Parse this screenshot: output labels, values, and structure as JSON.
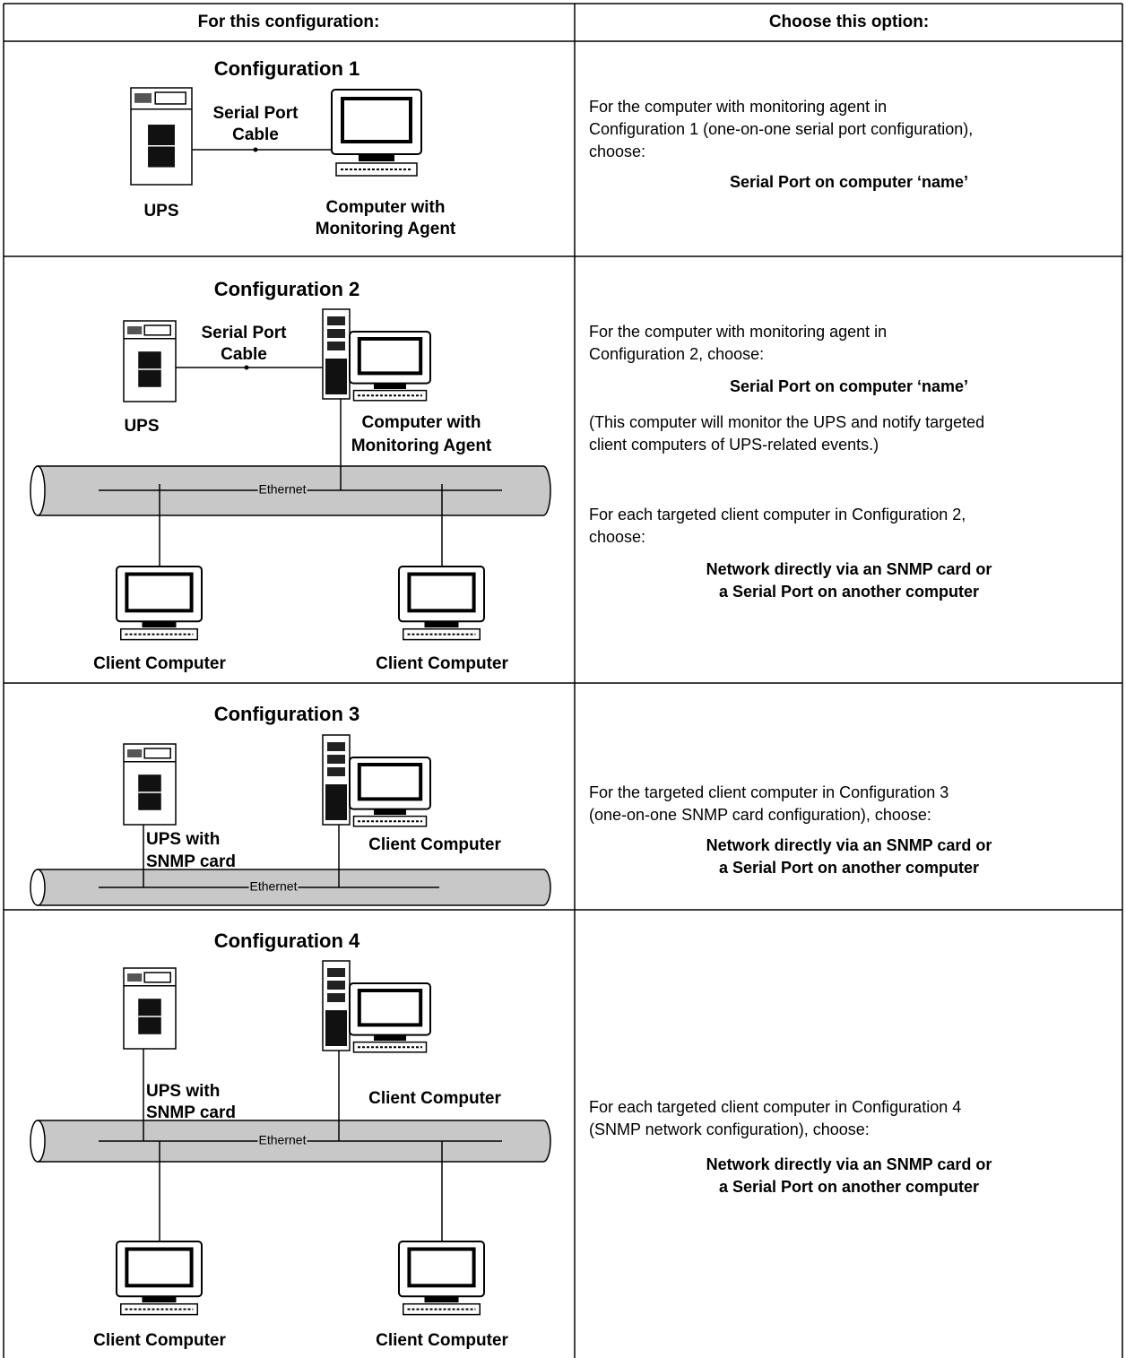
{
  "table": {
    "header": [
      "For this configuration:",
      "Choose this option:"
    ],
    "rows": [
      {
        "diagram": {
          "title": "Configuration 1",
          "labels": [
            "Serial Port",
            "Cable",
            "UPS",
            "Computer with",
            "Monitoring Agent"
          ]
        },
        "option": [
          {
            "bold": false,
            "lines": [
              "For the computer with monitoring agent in",
              "Configuration 1 (one-on-one serial port configuration),",
              "choose:"
            ]
          },
          {
            "bold": true,
            "lines": [
              "Serial Port on computer ‘name’"
            ]
          }
        ]
      },
      {
        "diagram": {
          "title": "Configuration 2",
          "labels": [
            "Serial Port",
            "Cable",
            "UPS",
            "Computer  with",
            "Monitoring Agent",
            "Ethernet",
            "Client Computer",
            "Client Computer"
          ]
        },
        "option": [
          {
            "bold": false,
            "lines": [
              "For the computer with monitoring agent in",
              "Configuration 2, choose:"
            ]
          },
          {
            "bold": true,
            "lines": [
              "Serial Port on computer ‘name’"
            ]
          },
          {
            "bold": false,
            "lines": [
              "(This computer will monitor the UPS and notify targeted",
              "client computers of UPS-related events.)"
            ]
          },
          {
            "bold": false,
            "lines": [
              "For each targeted client computer in Configuration 2,",
              "choose:"
            ]
          },
          {
            "bold": true,
            "lines": [
              "Network directly via an SNMP card or",
              "a Serial Port on another computer"
            ]
          }
        ]
      },
      {
        "diagram": {
          "title": "Configuration 3",
          "labels": [
            "UPS with",
            "SNMP card",
            "Client Computer",
            "Ethernet"
          ]
        },
        "option": [
          {
            "bold": false,
            "lines": [
              "For the targeted client computer in Configuration 3",
              "(one-on-one SNMP card configuration), choose:"
            ]
          },
          {
            "bold": true,
            "lines": [
              "Network directly via an SNMP card or",
              "a Serial Port on another computer"
            ]
          }
        ]
      },
      {
        "diagram": {
          "title": "Configuration 4",
          "labels": [
            "UPS with",
            "SNMP card",
            "Client Computer",
            "Ethernet",
            "Client Computer",
            "Client Computer"
          ]
        },
        "option": [
          {
            "bold": false,
            "lines": [
              "For each targeted client computer in Configuration 4",
              "(SNMP network configuration), choose:"
            ]
          },
          {
            "bold": true,
            "lines": [
              "Network directly via an SNMP card or",
              "a Serial Port on another computer"
            ]
          }
        ]
      }
    ]
  }
}
